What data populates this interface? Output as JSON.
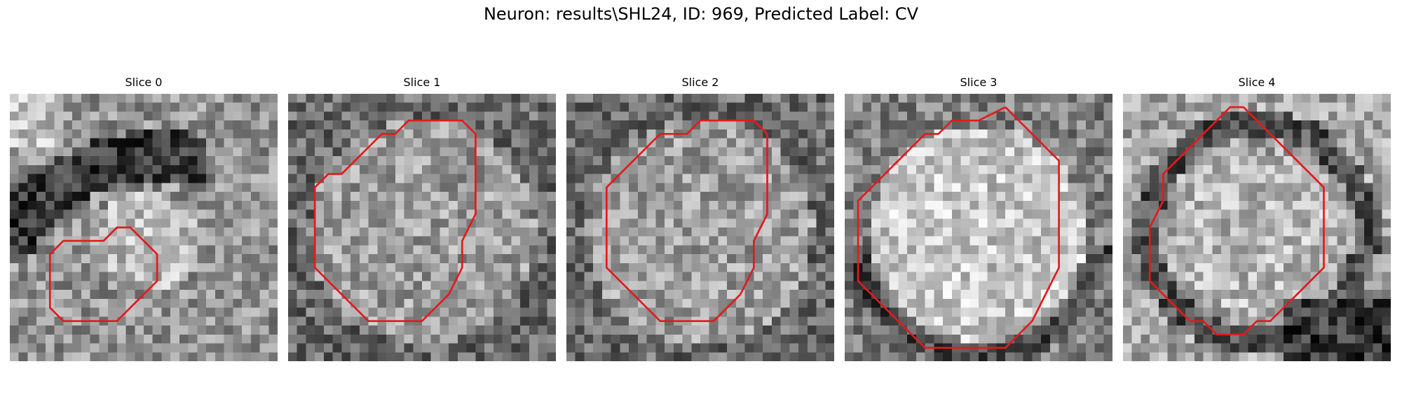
{
  "figure": {
    "title": "Neuron: results\\SHL24, ID: 969, Predicted Label: CV"
  },
  "colors": {
    "contour": "#e31a1c"
  },
  "panels": [
    {
      "title": "Slice 0",
      "pattern": "dark-arc-upper-left",
      "contour": [
        [
          6,
          11
        ],
        [
          7,
          11
        ],
        [
          8,
          10
        ],
        [
          9,
          10
        ],
        [
          10,
          11
        ],
        [
          11,
          12
        ],
        [
          11,
          13
        ],
        [
          11,
          14
        ],
        [
          10,
          15
        ],
        [
          9,
          16
        ],
        [
          8,
          17
        ],
        [
          7,
          17
        ],
        [
          6,
          17
        ],
        [
          5,
          17
        ],
        [
          4,
          17
        ],
        [
          3,
          16
        ],
        [
          3,
          15
        ],
        [
          3,
          14
        ],
        [
          3,
          13
        ],
        [
          3,
          12
        ],
        [
          4,
          11
        ],
        [
          5,
          11
        ],
        [
          6,
          11
        ]
      ]
    },
    {
      "title": "Slice 1",
      "pattern": "large-blob",
      "contour": [
        [
          11,
          2
        ],
        [
          13,
          2
        ],
        [
          14,
          3
        ],
        [
          14,
          5
        ],
        [
          14,
          7
        ],
        [
          14,
          9
        ],
        [
          13,
          11
        ],
        [
          13,
          13
        ],
        [
          12,
          15
        ],
        [
          11,
          16
        ],
        [
          10,
          17
        ],
        [
          8,
          17
        ],
        [
          7,
          17
        ],
        [
          6,
          17
        ],
        [
          5,
          16
        ],
        [
          4,
          15
        ],
        [
          3,
          14
        ],
        [
          2,
          13
        ],
        [
          2,
          11
        ],
        [
          2,
          9
        ],
        [
          2,
          7
        ],
        [
          3,
          6
        ],
        [
          4,
          6
        ],
        [
          5,
          5
        ],
        [
          6,
          4
        ],
        [
          7,
          3
        ],
        [
          8,
          3
        ],
        [
          9,
          2
        ],
        [
          10,
          2
        ],
        [
          11,
          2
        ]
      ]
    },
    {
      "title": "Slice 2",
      "pattern": "large-blob",
      "contour": [
        [
          12,
          2
        ],
        [
          14,
          2
        ],
        [
          15,
          3
        ],
        [
          15,
          5
        ],
        [
          15,
          7
        ],
        [
          15,
          9
        ],
        [
          14,
          11
        ],
        [
          14,
          13
        ],
        [
          13,
          15
        ],
        [
          12,
          16
        ],
        [
          11,
          17
        ],
        [
          9,
          17
        ],
        [
          8,
          17
        ],
        [
          7,
          17
        ],
        [
          6,
          16
        ],
        [
          5,
          15
        ],
        [
          4,
          14
        ],
        [
          3,
          13
        ],
        [
          3,
          11
        ],
        [
          3,
          9
        ],
        [
          3,
          7
        ],
        [
          4,
          6
        ],
        [
          5,
          5
        ],
        [
          6,
          4
        ],
        [
          7,
          3
        ],
        [
          9,
          3
        ],
        [
          10,
          2
        ],
        [
          12,
          2
        ]
      ]
    },
    {
      "title": "Slice 3",
      "pattern": "bright-blob",
      "contour": [
        [
          12,
          1
        ],
        [
          13,
          2
        ],
        [
          14,
          3
        ],
        [
          15,
          4
        ],
        [
          16,
          5
        ],
        [
          16,
          7
        ],
        [
          16,
          9
        ],
        [
          16,
          11
        ],
        [
          16,
          13
        ],
        [
          15,
          15
        ],
        [
          14,
          17
        ],
        [
          13,
          18
        ],
        [
          12,
          19
        ],
        [
          10,
          19
        ],
        [
          8,
          19
        ],
        [
          6,
          19
        ],
        [
          5,
          18
        ],
        [
          4,
          17
        ],
        [
          3,
          16
        ],
        [
          2,
          15
        ],
        [
          1,
          14
        ],
        [
          1,
          12
        ],
        [
          1,
          10
        ],
        [
          1,
          8
        ],
        [
          2,
          7
        ],
        [
          3,
          6
        ],
        [
          4,
          5
        ],
        [
          5,
          4
        ],
        [
          6,
          3
        ],
        [
          7,
          3
        ],
        [
          8,
          2
        ],
        [
          10,
          2
        ],
        [
          12,
          1
        ]
      ]
    },
    {
      "title": "Slice 4",
      "pattern": "dark-ring",
      "contour": [
        [
          9,
          1
        ],
        [
          10,
          2
        ],
        [
          11,
          3
        ],
        [
          12,
          4
        ],
        [
          13,
          5
        ],
        [
          14,
          6
        ],
        [
          15,
          7
        ],
        [
          15,
          9
        ],
        [
          15,
          11
        ],
        [
          15,
          13
        ],
        [
          14,
          14
        ],
        [
          13,
          15
        ],
        [
          12,
          16
        ],
        [
          11,
          17
        ],
        [
          10,
          17
        ],
        [
          9,
          18
        ],
        [
          8,
          18
        ],
        [
          7,
          18
        ],
        [
          6,
          17
        ],
        [
          5,
          17
        ],
        [
          4,
          16
        ],
        [
          3,
          15
        ],
        [
          2,
          14
        ],
        [
          2,
          12
        ],
        [
          2,
          10
        ],
        [
          3,
          8
        ],
        [
          3,
          6
        ],
        [
          4,
          5
        ],
        [
          5,
          4
        ],
        [
          6,
          3
        ],
        [
          7,
          2
        ],
        [
          8,
          1
        ],
        [
          9,
          1
        ]
      ]
    }
  ]
}
